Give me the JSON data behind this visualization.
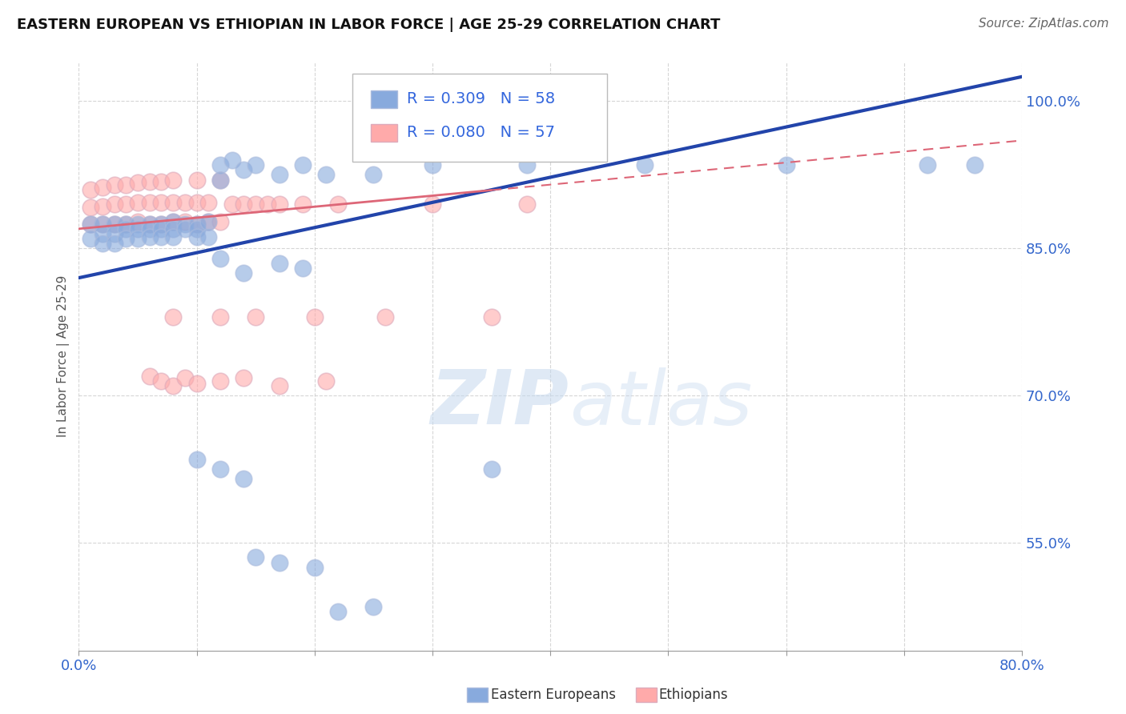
{
  "title": "EASTERN EUROPEAN VS ETHIOPIAN IN LABOR FORCE | AGE 25-29 CORRELATION CHART",
  "source": "Source: ZipAtlas.com",
  "ylabel_label": "In Labor Force | Age 25-29",
  "watermark_zip": "ZIP",
  "watermark_atlas": "atlas",
  "xlim": [
    0.0,
    0.8
  ],
  "ylim": [
    0.44,
    1.04
  ],
  "xticks": [
    0.0,
    0.1,
    0.2,
    0.3,
    0.4,
    0.5,
    0.6,
    0.7,
    0.8
  ],
  "xticklabels": [
    "0.0%",
    "",
    "",
    "",
    "",
    "",
    "",
    "",
    "80.0%"
  ],
  "yticks": [
    0.55,
    0.7,
    0.85,
    1.0
  ],
  "yticklabels": [
    "55.0%",
    "70.0%",
    "85.0%",
    "100.0%"
  ],
  "grid_color": "#cccccc",
  "background_color": "#ffffff",
  "blue_color": "#88aadd",
  "pink_color": "#ffaaaa",
  "blue_line_color": "#2244aa",
  "pink_line_color": "#dd6677",
  "R_blue": 0.309,
  "N_blue": 58,
  "R_pink": 0.08,
  "N_pink": 57,
  "legend_text_color": "#3366dd",
  "axis_label_color": "#555555",
  "tick_color": "#3366cc",
  "blue_line_x0": 0.0,
  "blue_line_y0": 0.82,
  "blue_line_x1": 0.8,
  "blue_line_y1": 1.025,
  "pink_line_x0": 0.0,
  "pink_line_y0": 0.87,
  "pink_line_x1": 0.8,
  "pink_line_y1": 0.96,
  "blue_x": [
    0.01,
    0.01,
    0.02,
    0.02,
    0.02,
    0.03,
    0.03,
    0.03,
    0.04,
    0.04,
    0.04,
    0.05,
    0.05,
    0.05,
    0.06,
    0.06,
    0.06,
    0.07,
    0.07,
    0.07,
    0.08,
    0.08,
    0.08,
    0.09,
    0.09,
    0.1,
    0.1,
    0.1,
    0.11,
    0.11,
    0.12,
    0.12,
    0.13,
    0.14,
    0.15,
    0.17,
    0.19,
    0.21,
    0.25,
    0.3,
    0.38,
    0.48,
    0.6,
    0.72,
    0.76,
    0.1,
    0.12,
    0.14,
    0.15,
    0.17,
    0.2,
    0.22,
    0.25,
    0.35,
    0.12,
    0.14,
    0.17,
    0.19
  ],
  "blue_y": [
    0.875,
    0.86,
    0.875,
    0.865,
    0.855,
    0.875,
    0.865,
    0.855,
    0.875,
    0.87,
    0.86,
    0.875,
    0.87,
    0.86,
    0.875,
    0.87,
    0.862,
    0.875,
    0.87,
    0.862,
    0.877,
    0.87,
    0.862,
    0.875,
    0.87,
    0.875,
    0.87,
    0.862,
    0.877,
    0.862,
    0.935,
    0.92,
    0.94,
    0.93,
    0.935,
    0.925,
    0.935,
    0.925,
    0.925,
    0.935,
    0.935,
    0.935,
    0.935,
    0.935,
    0.935,
    0.635,
    0.625,
    0.615,
    0.535,
    0.53,
    0.525,
    0.48,
    0.485,
    0.625,
    0.84,
    0.825,
    0.835,
    0.83
  ],
  "pink_x": [
    0.01,
    0.01,
    0.01,
    0.02,
    0.02,
    0.02,
    0.03,
    0.03,
    0.03,
    0.04,
    0.04,
    0.04,
    0.05,
    0.05,
    0.05,
    0.06,
    0.06,
    0.06,
    0.07,
    0.07,
    0.07,
    0.08,
    0.08,
    0.08,
    0.09,
    0.09,
    0.1,
    0.1,
    0.1,
    0.11,
    0.11,
    0.12,
    0.12,
    0.13,
    0.14,
    0.15,
    0.16,
    0.17,
    0.19,
    0.22,
    0.3,
    0.38,
    0.06,
    0.07,
    0.08,
    0.09,
    0.1,
    0.12,
    0.14,
    0.17,
    0.21,
    0.08,
    0.12,
    0.15,
    0.2,
    0.26,
    0.35
  ],
  "pink_y": [
    0.875,
    0.892,
    0.91,
    0.875,
    0.893,
    0.912,
    0.875,
    0.895,
    0.915,
    0.875,
    0.895,
    0.915,
    0.877,
    0.897,
    0.917,
    0.875,
    0.897,
    0.918,
    0.875,
    0.897,
    0.918,
    0.877,
    0.897,
    0.92,
    0.877,
    0.897,
    0.875,
    0.897,
    0.92,
    0.877,
    0.897,
    0.877,
    0.92,
    0.895,
    0.895,
    0.895,
    0.895,
    0.895,
    0.895,
    0.895,
    0.895,
    0.895,
    0.72,
    0.715,
    0.71,
    0.718,
    0.712,
    0.715,
    0.718,
    0.71,
    0.715,
    0.78,
    0.78,
    0.78,
    0.78,
    0.78,
    0.78
  ]
}
